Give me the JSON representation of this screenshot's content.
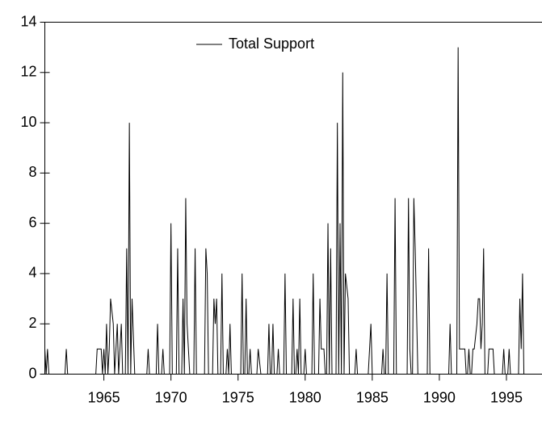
{
  "chart_data": {
    "type": "line",
    "x": [
      1960.6,
      1960.7,
      1960.8,
      1960.9,
      1962.1,
      1962.2,
      1962.3,
      1964.4,
      1964.5,
      1964.8,
      1964.9,
      1965.0,
      1965.1,
      1965.2,
      1965.3,
      1965.4,
      1965.5,
      1965.7,
      1965.8,
      1966.0,
      1966.1,
      1966.3,
      1966.4,
      1966.6,
      1966.7,
      1966.8,
      1966.9,
      1967.0,
      1967.1,
      1967.3,
      1968.2,
      1968.3,
      1968.4,
      1968.9,
      1969.0,
      1969.1,
      1969.3,
      1969.4,
      1969.5,
      1969.9,
      1970.0,
      1970.1,
      1970.4,
      1970.5,
      1970.6,
      1970.8,
      1970.9,
      1971.0,
      1971.1,
      1971.2,
      1971.4,
      1971.7,
      1971.8,
      1971.9,
      1972.5,
      1972.6,
      1972.7,
      1972.8,
      1973.1,
      1973.2,
      1973.3,
      1973.4,
      1973.5,
      1973.7,
      1973.8,
      1973.9,
      1974.1,
      1974.2,
      1974.3,
      1974.4,
      1974.5,
      1975.2,
      1975.3,
      1975.4,
      1975.5,
      1975.6,
      1975.7,
      1975.8,
      1975.9,
      1976.0,
      1976.4,
      1976.5,
      1976.7,
      1977.2,
      1977.3,
      1977.4,
      1977.5,
      1977.6,
      1977.7,
      1977.9,
      1978.0,
      1978.1,
      1978.4,
      1978.5,
      1978.6,
      1979.0,
      1979.1,
      1979.2,
      1979.3,
      1979.4,
      1979.5,
      1979.6,
      1979.7,
      1979.9,
      1980.0,
      1980.1,
      1980.5,
      1980.6,
      1980.7,
      1981.0,
      1981.1,
      1981.2,
      1981.4,
      1981.5,
      1981.6,
      1981.7,
      1981.8,
      1981.9,
      1982.0,
      1982.3,
      1982.4,
      1982.5,
      1982.6,
      1982.7,
      1982.8,
      1982.9,
      1983.0,
      1983.2,
      1983.3,
      1983.7,
      1983.8,
      1983.9,
      1984.7,
      1984.8,
      1984.9,
      1985.0,
      1985.7,
      1985.8,
      1985.9,
      1986.0,
      1986.1,
      1986.2,
      1986.6,
      1986.7,
      1986.8,
      1987.6,
      1987.7,
      1987.8,
      1987.9,
      1988.0,
      1988.1,
      1988.2,
      1988.4,
      1989.1,
      1989.2,
      1989.3,
      1990.7,
      1990.8,
      1990.9,
      1991.3,
      1991.4,
      1991.5,
      1991.9,
      1992.0,
      1992.1,
      1992.2,
      1992.3,
      1992.4,
      1992.5,
      1992.6,
      1992.8,
      1992.9,
      1993.0,
      1993.1,
      1993.2,
      1993.3,
      1993.4,
      1993.6,
      1993.7,
      1993.8,
      1994.0,
      1994.1,
      1994.7,
      1994.8,
      1994.9,
      1995.1,
      1995.2,
      1995.3,
      1995.9,
      1996.0,
      1996.1,
      1996.2,
      1996.3,
      1997.6
    ],
    "series": [
      {
        "name": "Total Support",
        "color": "#000000",
        "values": [
          1,
          0,
          1,
          0,
          0,
          1,
          0,
          0,
          1,
          1,
          0,
          1,
          0,
          2,
          0,
          1,
          3,
          2,
          0,
          2,
          0,
          2,
          0,
          0,
          5,
          0,
          10,
          0,
          3,
          0,
          0,
          1,
          0,
          0,
          2,
          0,
          0,
          1,
          0,
          0,
          6,
          0,
          0,
          5,
          0,
          0,
          3,
          0,
          7,
          2,
          0,
          0,
          5,
          0,
          0,
          5,
          4,
          0,
          0,
          3,
          2,
          3,
          0,
          0,
          4,
          0,
          0,
          1,
          0,
          2,
          0,
          0,
          4,
          0,
          0,
          3,
          0,
          0,
          1,
          0,
          0,
          1,
          0,
          0,
          2,
          0,
          0,
          2,
          0,
          0,
          1,
          0,
          0,
          4,
          0,
          0,
          3,
          0,
          0,
          1,
          0,
          3,
          0,
          0,
          1,
          0,
          0,
          4,
          0,
          0,
          3,
          1,
          1,
          0,
          0,
          6,
          0,
          5,
          0,
          0,
          10,
          0,
          6,
          0,
          12,
          0,
          4,
          3,
          0,
          0,
          1,
          0,
          0,
          1,
          2,
          0,
          0,
          1,
          0,
          0,
          4,
          0,
          0,
          7,
          0,
          0,
          7,
          1,
          0,
          0,
          7,
          5,
          0,
          0,
          5,
          0,
          0,
          2,
          0,
          0,
          13,
          1,
          1,
          0,
          0,
          1,
          0,
          0,
          1,
          1,
          2,
          3,
          3,
          1,
          2,
          5,
          0,
          0,
          1,
          1,
          1,
          0,
          0,
          1,
          0,
          0,
          1,
          0,
          0,
          3,
          1,
          4,
          0,
          0
        ]
      }
    ],
    "xlim": [
      1960.6,
      1997.65
    ],
    "xticks": [
      1965,
      1970,
      1975,
      1980,
      1985,
      1990,
      1995
    ],
    "ylim": [
      0,
      14
    ],
    "yticks": [
      0,
      2,
      4,
      6,
      8,
      10,
      12,
      14
    ],
    "legend": "top"
  }
}
